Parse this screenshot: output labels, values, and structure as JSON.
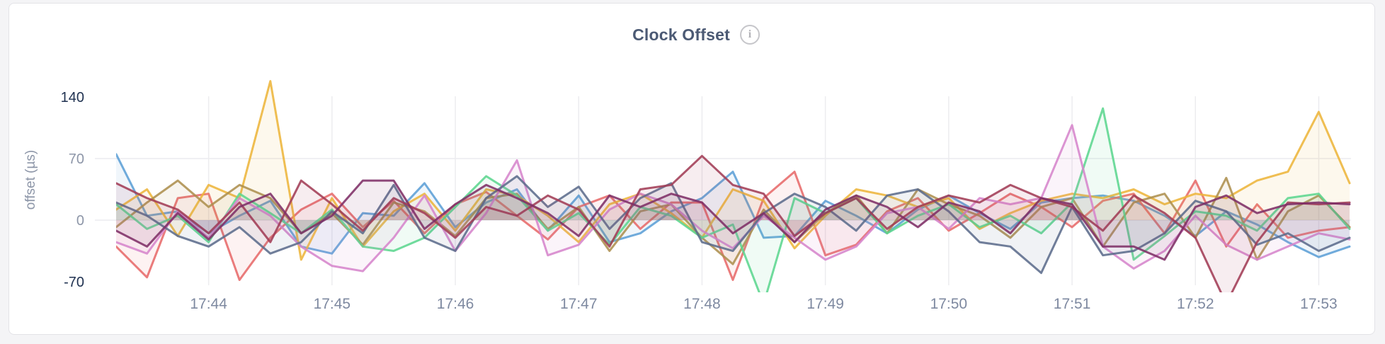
{
  "header": {
    "title": "Clock Offset",
    "info_icon_glyph": "i"
  },
  "colors": {
    "page_bg": "#f4f4f6",
    "card_bg": "#ffffff",
    "card_border": "#e3e3e7",
    "title_text": "#4c5a74",
    "grid_line": "#ececef",
    "tick_label_strong": "#1f3150",
    "tick_label_normal": "#8d96a8",
    "x_tick_label": "#7e89a0",
    "axis_title": "#8d96a8"
  },
  "chart_data": {
    "type": "line",
    "title": "Clock Offset",
    "xlabel": "",
    "ylabel": "offset (µs)",
    "ylim": [
      -70,
      140
    ],
    "grid": true,
    "legend": "none",
    "x_start": "17:43:15",
    "x_step_seconds": 15,
    "num_points": 41,
    "xticks": [
      "17:44",
      "17:45",
      "17:46",
      "17:47",
      "17:48",
      "17:49",
      "17:50",
      "17:51",
      "17:52",
      "17:53"
    ],
    "x_tick_first_index": 3,
    "x_tick_index_step": 4,
    "yticks": [
      {
        "label": "140",
        "value": 140,
        "strong": true,
        "grid": false
      },
      {
        "label": "70",
        "value": 70,
        "strong": false,
        "grid": true
      },
      {
        "label": "0",
        "value": 0,
        "strong": false,
        "grid": true
      },
      {
        "label": "-70",
        "value": -70,
        "strong": true,
        "grid": false
      }
    ],
    "series": [
      {
        "name": "blue",
        "color": "#5C9FD6",
        "values": [
          75,
          5,
          10,
          -15,
          5,
          22,
          -30,
          -38,
          8,
          5,
          42,
          -8,
          20,
          35,
          -12,
          28,
          -25,
          -15,
          10,
          25,
          55,
          -20,
          -18,
          22,
          5,
          -15,
          12,
          28,
          8,
          -10,
          20,
          25,
          28,
          22,
          5,
          -18,
          10,
          -5,
          -25,
          -42,
          -30
        ]
      },
      {
        "name": "red",
        "color": "#E76A6A",
        "values": [
          -30,
          -65,
          25,
          30,
          -68,
          -20,
          12,
          30,
          -8,
          22,
          -15,
          18,
          32,
          5,
          -22,
          15,
          28,
          -10,
          20,
          20,
          -68,
          25,
          55,
          -40,
          -28,
          10,
          25,
          -12,
          8,
          30,
          15,
          -8,
          22,
          30,
          -15,
          45,
          -30,
          18,
          -20,
          -12,
          -8
        ]
      },
      {
        "name": "gold",
        "color": "#EDB53B",
        "values": [
          12,
          35,
          -18,
          40,
          25,
          158,
          -45,
          25,
          -30,
          10,
          30,
          -12,
          35,
          28,
          5,
          -25,
          18,
          30,
          8,
          -20,
          35,
          22,
          -32,
          5,
          35,
          28,
          15,
          25,
          -10,
          8,
          22,
          30,
          25,
          35,
          18,
          30,
          25,
          45,
          55,
          123,
          42
        ]
      },
      {
        "name": "olive",
        "color": "#AD8F4E",
        "values": [
          -8,
          20,
          45,
          15,
          40,
          25,
          -15,
          8,
          -28,
          20,
          10,
          -18,
          25,
          30,
          -10,
          15,
          -35,
          10,
          18,
          -20,
          -50,
          12,
          -25,
          8,
          28,
          -15,
          35,
          18,
          5,
          -20,
          15,
          25,
          -30,
          20,
          30,
          -20,
          48,
          -45,
          10,
          28,
          -8
        ]
      },
      {
        "name": "green",
        "color": "#5CD68F",
        "values": [
          18,
          -10,
          5,
          -25,
          30,
          8,
          -15,
          12,
          -30,
          -35,
          -20,
          15,
          50,
          28,
          -12,
          8,
          -28,
          15,
          5,
          -20,
          -5,
          -95,
          25,
          8,
          25,
          -15,
          5,
          18,
          -8,
          5,
          -15,
          20,
          127,
          -45,
          -18,
          10,
          5,
          -12,
          25,
          30,
          -10
        ]
      },
      {
        "name": "orchid",
        "color": "#D685CC",
        "values": [
          -25,
          -38,
          10,
          -20,
          25,
          5,
          -30,
          -52,
          -58,
          -20,
          28,
          -35,
          8,
          68,
          -40,
          -28,
          12,
          30,
          18,
          -12,
          -32,
          5,
          -20,
          -45,
          -30,
          8,
          15,
          -10,
          25,
          18,
          25,
          108,
          -30,
          -55,
          -35,
          5,
          -28,
          -45,
          -30,
          -15,
          -22
        ]
      },
      {
        "name": "slate",
        "color": "#5C6C8C",
        "values": [
          20,
          5,
          -18,
          -30,
          -8,
          -38,
          -25,
          10,
          -15,
          40,
          -20,
          -35,
          25,
          50,
          15,
          38,
          -10,
          25,
          42,
          -25,
          -35,
          8,
          30,
          15,
          -12,
          28,
          35,
          10,
          -25,
          -30,
          -60,
          15,
          -40,
          -35,
          -15,
          22,
          10,
          -28,
          -15,
          -35,
          -20
        ]
      },
      {
        "name": "maroon",
        "color": "#A23C55",
        "values": [
          42,
          25,
          12,
          -15,
          20,
          -25,
          45,
          18,
          -12,
          25,
          8,
          -20,
          15,
          5,
          28,
          12,
          -30,
          35,
          40,
          73,
          40,
          30,
          -18,
          8,
          25,
          -10,
          15,
          28,
          20,
          40,
          25,
          15,
          -12,
          28,
          8,
          -20,
          -95,
          -25,
          20,
          18,
          20
        ]
      },
      {
        "name": "plum",
        "color": "#7E2F66",
        "values": [
          -12,
          -30,
          8,
          -22,
          15,
          30,
          -15,
          5,
          45,
          45,
          -10,
          18,
          40,
          25,
          8,
          -18,
          28,
          15,
          30,
          20,
          -15,
          8,
          -25,
          12,
          28,
          15,
          -8,
          20,
          10,
          -15,
          25,
          18,
          -30,
          -30,
          -45,
          15,
          28,
          8,
          18,
          20,
          18
        ]
      }
    ]
  }
}
